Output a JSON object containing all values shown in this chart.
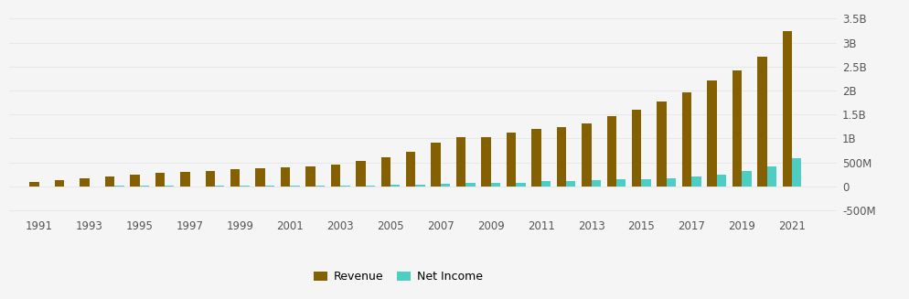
{
  "years": [
    1991,
    1992,
    1993,
    1994,
    1995,
    1996,
    1997,
    1998,
    1999,
    2000,
    2001,
    2002,
    2003,
    2004,
    2005,
    2006,
    2007,
    2008,
    2009,
    2010,
    2011,
    2012,
    2013,
    2014,
    2015,
    2016,
    2017,
    2018,
    2019,
    2020,
    2021
  ],
  "revenue": [
    101000000.0,
    137000000.0,
    177000000.0,
    214000000.0,
    254000000.0,
    282000000.0,
    306000000.0,
    325000000.0,
    354000000.0,
    383000000.0,
    400000000.0,
    424000000.0,
    464000000.0,
    530000000.0,
    610000000.0,
    715000000.0,
    912000000.0,
    1026000000.0,
    1031000000.0,
    1117000000.0,
    1196000000.0,
    1246000000.0,
    1318000000.0,
    1461000000.0,
    1600000000.0,
    1775000000.0,
    1969000000.0,
    2213000000.0,
    2421000000.0,
    2709000000.0,
    3233000000.0
  ],
  "net_income": [
    3000000.0,
    5000000.0,
    8000000.0,
    13000000.0,
    16000000.0,
    12000000.0,
    6000000.0,
    11000000.0,
    15000000.0,
    9000000.0,
    12000000.0,
    17000000.0,
    15000000.0,
    20000000.0,
    33000000.0,
    44000000.0,
    63000000.0,
    68000000.0,
    74000000.0,
    84000000.0,
    108000000.0,
    123000000.0,
    135000000.0,
    155000000.0,
    158000000.0,
    169000000.0,
    204000000.0,
    245000000.0,
    325000000.0,
    424000000.0,
    596000000.0
  ],
  "revenue_color": "#856000",
  "net_income_color": "#4ecdc4",
  "background_color": "#f5f5f5",
  "grid_color": "#e8e8e8",
  "ylabel_right_ticks": [
    -500000000,
    0,
    500000000,
    1000000000,
    1500000000,
    2000000000,
    2500000000,
    3000000000,
    3500000000
  ],
  "ylabel_right_labels": [
    "-500M",
    "0",
    "500M",
    "1B",
    "1.5B",
    "2B",
    "2.5B",
    "3B",
    "3.5B"
  ],
  "ylim": [
    -600000000,
    3700000000
  ],
  "xlim": [
    1989.8,
    2022.8
  ],
  "x_ticks": [
    1991,
    1993,
    1995,
    1997,
    1999,
    2001,
    2003,
    2005,
    2007,
    2009,
    2011,
    2013,
    2015,
    2017,
    2019,
    2021
  ],
  "legend_labels": [
    "Revenue",
    "Net Income"
  ],
  "bar_width": 0.38
}
